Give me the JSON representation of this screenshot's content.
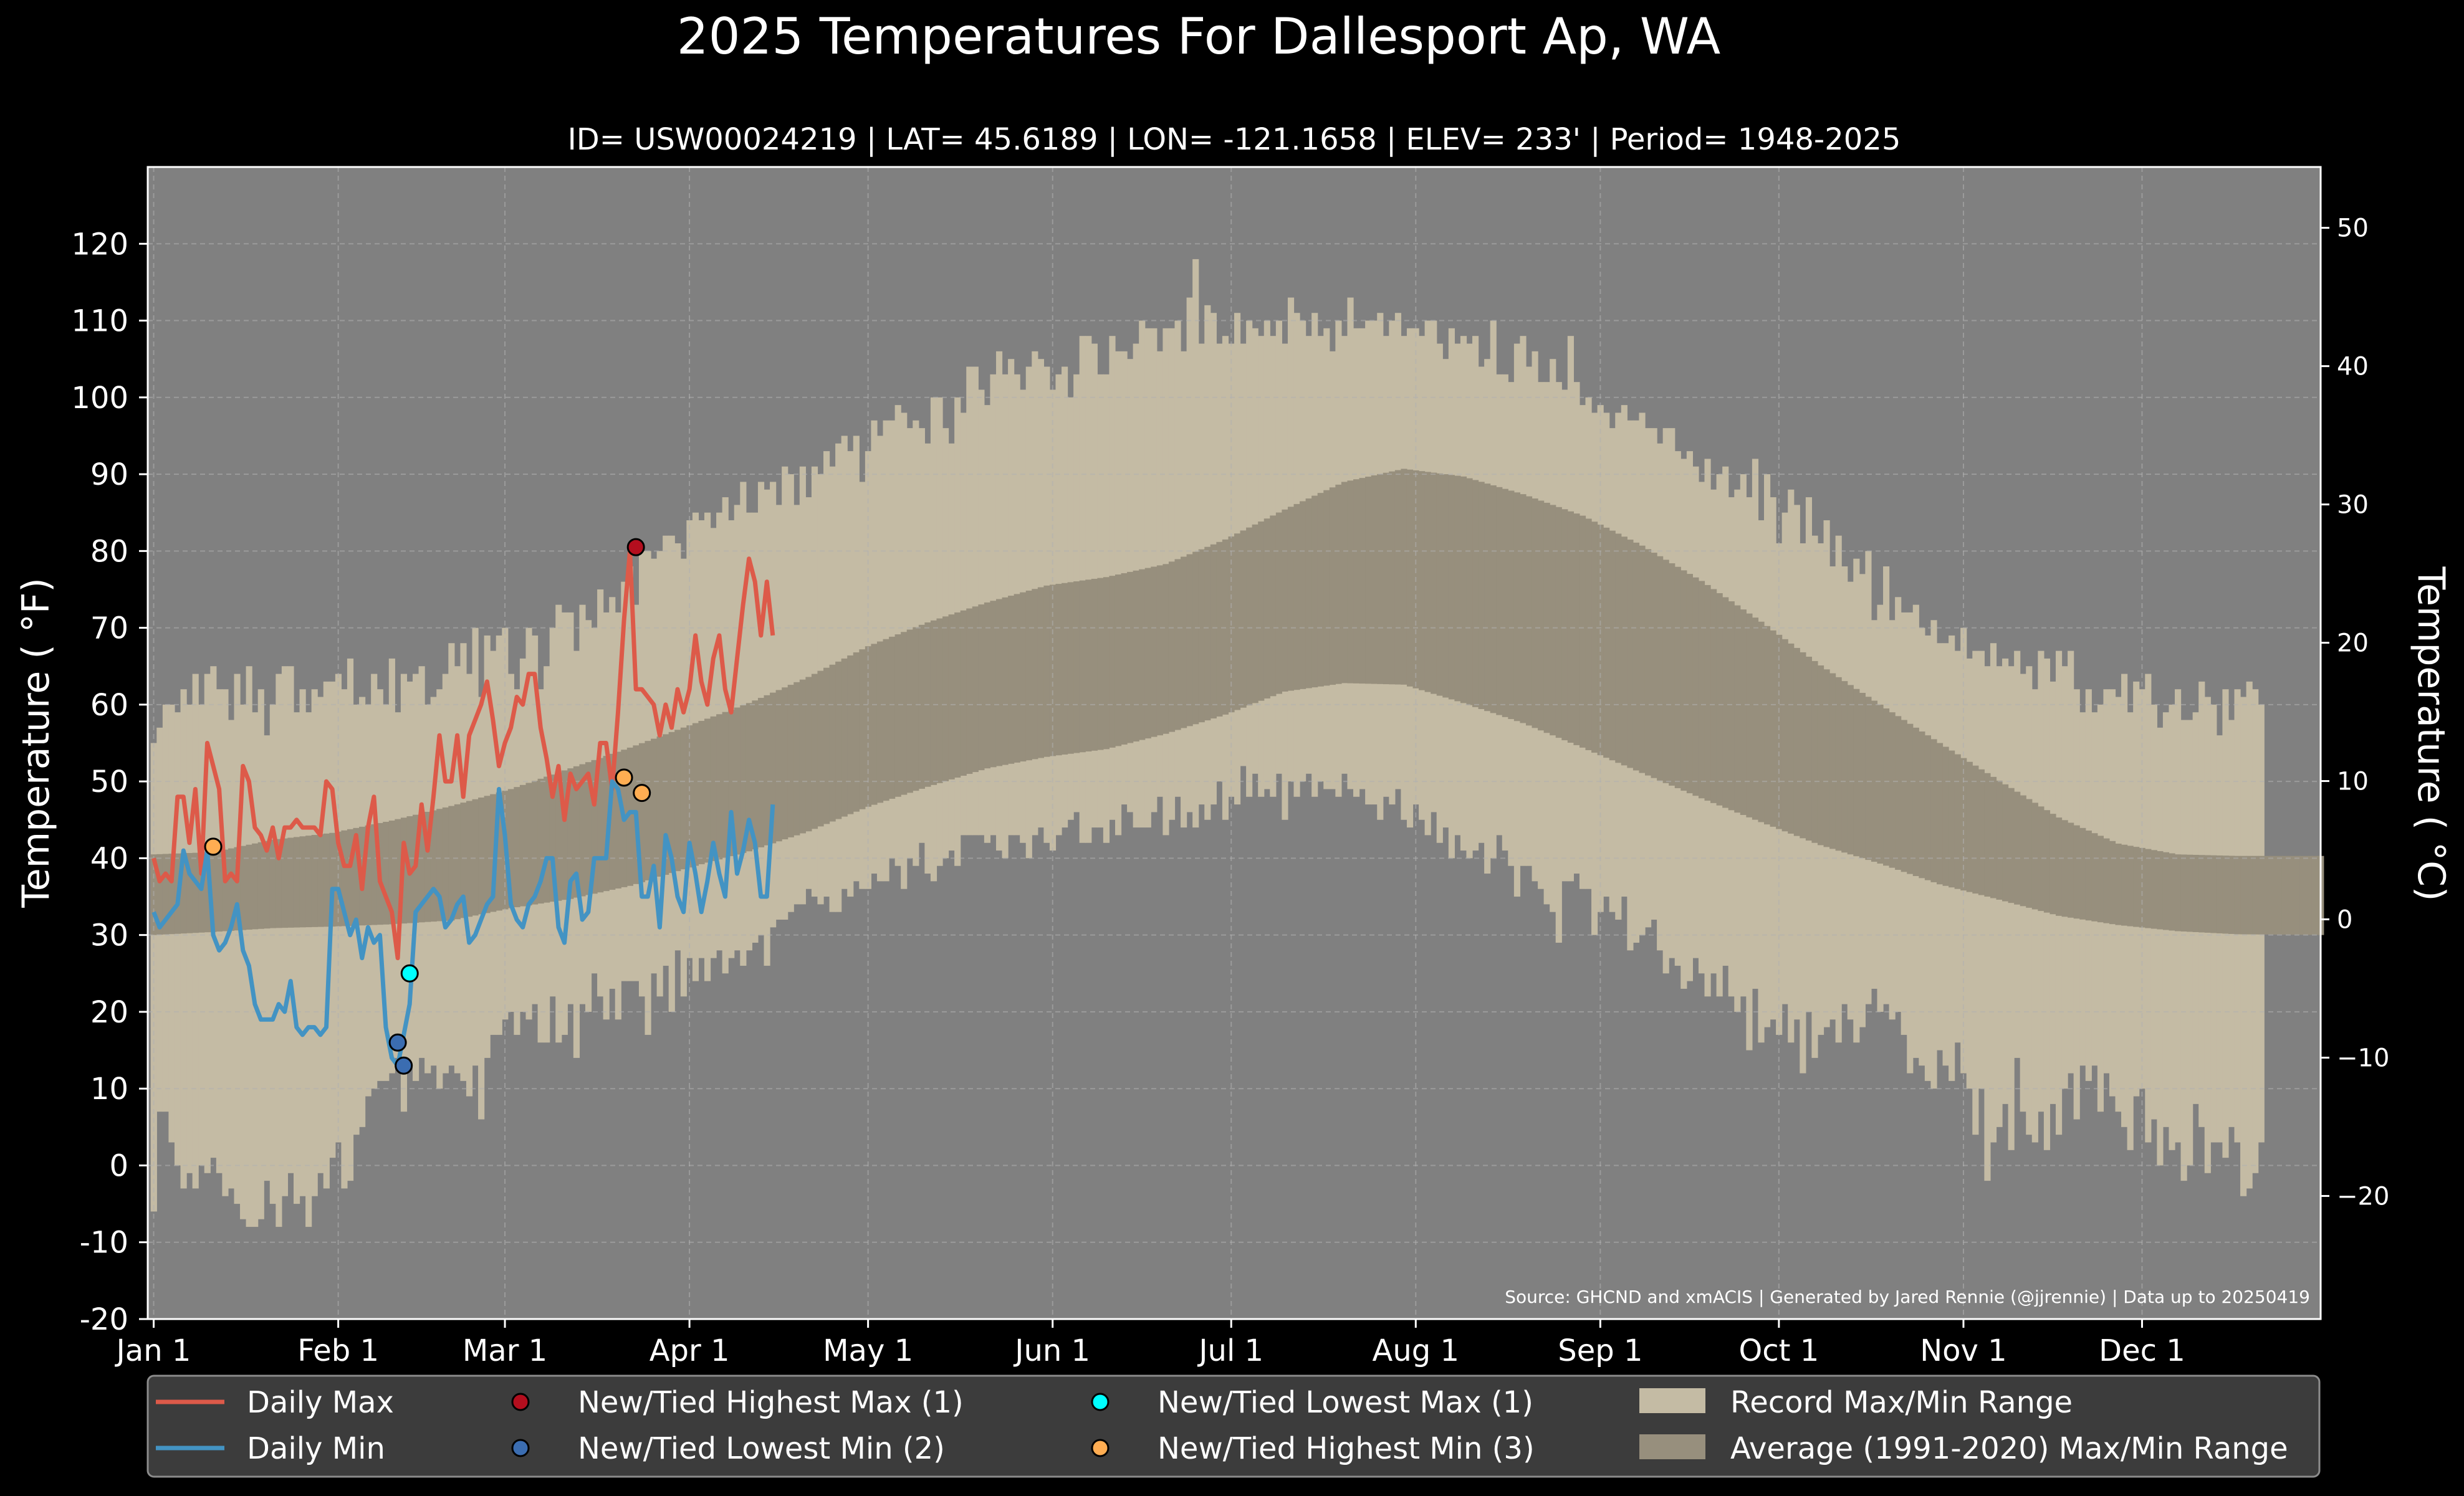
{
  "chart_data": {
    "type": "line",
    "title": "2025 Temperatures For Dallesport Ap, WA",
    "subtitle": "ID= USW00024219 | LAT= 45.6189 | LON= -121.1658 | ELEV= 233' | Period= 1948-2025",
    "ylabel": "Temperature ($^\\circ$F)",
    "ylabel_display": "Temperature ( °F)",
    "y2label": "Temperature ( °C)",
    "ylim": [
      -20,
      130
    ],
    "y2lim": [
      -28.9,
      54.4
    ],
    "xlim": [
      -1,
      364
    ],
    "yticks": [
      -20,
      -10,
      0,
      10,
      20,
      30,
      40,
      50,
      60,
      70,
      80,
      90,
      100,
      110,
      120
    ],
    "ytick_labels": [
      "-20",
      "-10",
      "0",
      "10",
      "20",
      "30",
      "40",
      "50",
      "60",
      "70",
      "80",
      "90",
      "100",
      "110",
      "120"
    ],
    "y2ticks": [
      -20,
      -10,
      0,
      10,
      20,
      30,
      40,
      50
    ],
    "y2tick_labels": [
      "−20",
      "−10",
      "0",
      "10",
      "20",
      "30",
      "40",
      "50"
    ],
    "xticks": [
      0,
      31,
      59,
      90,
      120,
      151,
      181,
      212,
      243,
      273,
      304,
      334
    ],
    "xtick_labels": [
      "Jan 1",
      "Feb 1",
      "Mar 1",
      "Apr 1",
      "May 1",
      "Jun 1",
      "Jul 1",
      "Aug 1",
      "Sep 1",
      "Oct 1",
      "Nov 1",
      "Dec 1"
    ],
    "grid": true,
    "source_note": "Source: GHCND and xmACIS | Generated by Jared Rennie (@jjrennie) | Data up to 20250419",
    "series": [
      {
        "name": "Daily Max",
        "color": "#dd5a49",
        "values": [
          40,
          37,
          38,
          37,
          48,
          48,
          42,
          49,
          38,
          55,
          52,
          49,
          37,
          38,
          37,
          52,
          50,
          44,
          43,
          41,
          44,
          40,
          44,
          44,
          45,
          44,
          44,
          44,
          43,
          50,
          49,
          42,
          39,
          39,
          43,
          36,
          44,
          48,
          37,
          35,
          33,
          27,
          42,
          38,
          39,
          47,
          41,
          48,
          56,
          50,
          50,
          56,
          48,
          56,
          58,
          60,
          63,
          58,
          52,
          55,
          57,
          61,
          60,
          64,
          64,
          57,
          53,
          48,
          52,
          45,
          51,
          49,
          50,
          51,
          47,
          55,
          55,
          49,
          59,
          71,
          80,
          62,
          62,
          61,
          60,
          56,
          60,
          57,
          62,
          59,
          62,
          69,
          63,
          60,
          66,
          69,
          62,
          59,
          66,
          73,
          79,
          76,
          69,
          76,
          69
        ]
      },
      {
        "name": "Daily Min",
        "color": "#4393c3",
        "values": [
          33,
          31,
          32,
          33,
          34,
          41,
          38,
          37,
          36,
          41,
          30,
          28,
          29,
          31,
          34,
          28,
          26,
          21,
          19,
          19,
          19,
          21,
          20,
          24,
          18,
          17,
          18,
          18,
          17,
          18,
          36,
          36,
          33,
          30,
          32,
          27,
          31,
          29,
          30,
          18,
          14,
          13,
          17,
          21,
          33,
          34,
          35,
          36,
          35,
          31,
          32,
          34,
          35,
          29,
          30,
          32,
          34,
          35,
          49,
          43,
          34,
          32,
          31,
          34,
          35,
          37,
          40,
          40,
          31,
          29,
          37,
          38,
          32,
          33,
          40,
          40,
          40,
          50,
          49,
          45,
          46,
          46,
          35,
          35,
          39,
          31,
          43,
          40,
          35,
          33,
          42,
          38,
          33,
          37,
          42,
          38,
          35,
          46,
          38,
          41,
          45,
          42,
          35,
          35,
          47
        ]
      },
      {
        "name": "Record Max",
        "color": "#c4bba4",
        "values": [
          55,
          57,
          60,
          60,
          59,
          62,
          60,
          64,
          60,
          64,
          65,
          62,
          62,
          58,
          64,
          60,
          65,
          59,
          62,
          56,
          60,
          64,
          65,
          65,
          59,
          62,
          59,
          62,
          61,
          63,
          63,
          64,
          62,
          66,
          60,
          61,
          60,
          64,
          62,
          60,
          66,
          59,
          64,
          63,
          64,
          65,
          60,
          61,
          62,
          64,
          68,
          65,
          68,
          64,
          70,
          61,
          69,
          67,
          69,
          70,
          64,
          62,
          66,
          70,
          69,
          62,
          65,
          70,
          73,
          72,
          72,
          67,
          73,
          71,
          70,
          75,
          72,
          74,
          72,
          76,
          78,
          73,
          80,
          80,
          79,
          80,
          82,
          82,
          81,
          79,
          84,
          85,
          84,
          85,
          83,
          85,
          87,
          84,
          86,
          89,
          85,
          85,
          89,
          88,
          89,
          86,
          91,
          90,
          86,
          91,
          87,
          91,
          90,
          93,
          91,
          94,
          95,
          93,
          95,
          89,
          93,
          97,
          95,
          97,
          97,
          99,
          98,
          96,
          97,
          96,
          94,
          100,
          100,
          96,
          94,
          100,
          98,
          104,
          104,
          101,
          99,
          103,
          106,
          103,
          105,
          103,
          101,
          104,
          106,
          105,
          104,
          101,
          103,
          104,
          100,
          103,
          108,
          108,
          107,
          103,
          103,
          108,
          106,
          106,
          105,
          107,
          110,
          109,
          109,
          106,
          109,
          109,
          110,
          106,
          113,
          118,
          107,
          112,
          111,
          107,
          108,
          107,
          111,
          107,
          110,
          109,
          108,
          110,
          108,
          110,
          107,
          113,
          111,
          110,
          108,
          111,
          108,
          109,
          106,
          110,
          108,
          113,
          109,
          109,
          110,
          110,
          111,
          108,
          110,
          111,
          108,
          109,
          109,
          108,
          110,
          110,
          107,
          105,
          109,
          107,
          108,
          107,
          108,
          104,
          105,
          110,
          103,
          103,
          102,
          107,
          108,
          104,
          106,
          102,
          102,
          105,
          102,
          101,
          108,
          102,
          99,
          100,
          98,
          99,
          98,
          96,
          98,
          99,
          97,
          97,
          98,
          96,
          96,
          94,
          96,
          96,
          93,
          92,
          93,
          91,
          89,
          92,
          88,
          90,
          91,
          87,
          88,
          90,
          87,
          92,
          84,
          90,
          87,
          81,
          85,
          88,
          86,
          81,
          87,
          82,
          81,
          84,
          78,
          82,
          78,
          76,
          79,
          77,
          80,
          71,
          73,
          78,
          71,
          74,
          72,
          72,
          73,
          70,
          69,
          71,
          68,
          68,
          69,
          67,
          70,
          66,
          67,
          67,
          65,
          68,
          65,
          66,
          65,
          67,
          64,
          65,
          62,
          67,
          66,
          63,
          67,
          65,
          67,
          62,
          59,
          62,
          59,
          60,
          62,
          62,
          61,
          64,
          59,
          63,
          62,
          64,
          60,
          57,
          59,
          60,
          62,
          58,
          58,
          59,
          63,
          61,
          60,
          56,
          62,
          58,
          62,
          61,
          63,
          62,
          60
        ]
      },
      {
        "name": "Record Min",
        "color": "#c4bba4",
        "values": [
          -6,
          7,
          7,
          3,
          0,
          -3,
          -1,
          -3,
          0,
          -1,
          1,
          -1,
          -4,
          -3,
          -5,
          -7,
          -8,
          -8,
          -7,
          -2,
          -5,
          -8,
          -4,
          -1,
          -5,
          -4,
          -8,
          -4,
          -1,
          -3,
          1,
          3,
          -3,
          -2,
          4,
          5,
          9,
          10,
          11,
          11,
          12,
          14,
          7,
          13,
          11,
          14,
          12,
          13,
          10,
          12,
          13,
          12,
          11,
          9,
          13,
          6,
          14,
          17,
          17,
          19,
          20,
          17,
          20,
          19,
          21,
          16,
          16,
          22,
          16,
          17,
          21,
          14,
          21,
          20,
          25,
          22,
          19,
          23,
          19,
          24,
          24,
          24,
          22,
          17,
          25,
          22,
          26,
          20,
          28,
          22,
          27,
          24,
          27,
          24,
          27,
          28,
          25,
          27,
          28,
          26,
          28,
          29,
          30,
          26,
          31,
          32,
          32,
          33,
          34,
          34,
          36,
          35,
          34,
          35,
          33,
          33,
          36,
          35,
          37,
          36,
          36,
          38,
          37,
          37,
          40,
          39,
          36,
          40,
          39,
          42,
          38,
          37,
          39,
          40,
          41,
          39,
          43,
          43,
          43,
          43,
          42,
          43,
          41,
          40,
          43,
          43,
          42,
          40,
          43,
          44,
          42,
          41,
          43,
          44,
          45,
          46,
          42,
          42,
          44,
          44,
          42,
          45,
          43,
          47,
          46,
          44,
          44,
          44,
          46,
          48,
          43,
          45,
          48,
          44,
          46,
          44,
          47,
          45,
          47,
          50,
          45,
          48,
          47,
          52,
          48,
          51,
          48,
          49,
          48,
          51,
          45,
          50,
          48,
          50,
          51,
          48,
          50,
          49,
          49,
          48,
          51,
          49,
          48,
          49,
          47,
          47,
          45,
          48,
          47,
          49,
          45,
          44,
          47,
          45,
          43,
          46,
          42,
          44,
          40,
          43,
          41,
          40,
          41,
          42,
          38,
          40,
          43,
          41,
          39,
          35,
          39,
          39,
          37,
          36,
          34,
          33,
          29,
          37,
          37,
          38,
          36,
          36,
          30,
          33,
          35,
          33,
          32,
          35,
          28,
          29,
          30,
          31,
          32,
          28,
          25,
          27,
          26,
          23,
          24,
          27,
          25,
          22,
          25,
          22,
          26,
          22,
          20,
          22,
          15,
          23,
          16,
          18,
          19,
          17,
          21,
          16,
          19,
          12,
          20,
          14,
          17,
          18,
          19,
          16,
          21,
          19,
          16,
          18,
          21,
          23,
          20,
          21,
          19,
          20,
          17,
          12,
          14,
          13,
          11,
          10,
          15,
          13,
          11,
          16,
          12,
          10,
          4,
          10,
          -2,
          3,
          5,
          8,
          2,
          14,
          7,
          4,
          3,
          7,
          2,
          8,
          4,
          10,
          12,
          6,
          13,
          11,
          13,
          7,
          12,
          9,
          7,
          5,
          2,
          9,
          10,
          3,
          6,
          0,
          5,
          2,
          3,
          -2,
          0,
          8,
          5,
          -1,
          3,
          3,
          1,
          5,
          3,
          -4,
          -3,
          -1,
          3,
          2,
          -5,
          -4,
          -2,
          -1,
          -3,
          -2,
          -1,
          0,
          -2,
          -4,
          -5,
          -4,
          -5,
          -2,
          -3
        ]
      },
      {
        "name": "Normal Max",
        "color": "#978f7d",
        "values": [
          40.5,
          40.8,
          42.4,
          43.3,
          44.9,
          46.8,
          49.0,
          51.7,
          54.4,
          57.3,
          60.2,
          63.6,
          67.6,
          70.7,
          73.3,
          75.5,
          76.6,
          78.3,
          81.5,
          85.4,
          89.0,
          90.7,
          89.7,
          87.4,
          84.6,
          80.7,
          76.1,
          70.8,
          65.1,
          60.0,
          55.0,
          50.1,
          45.3,
          41.9,
          40.5,
          40.3,
          40.3
        ]
      },
      {
        "name": "Normal Min",
        "color": "#978f7d",
        "values": [
          30.0,
          30.4,
          30.9,
          31.1,
          31.4,
          31.9,
          33.5,
          34.7,
          36.4,
          38.8,
          40.9,
          43.5,
          46.7,
          49.3,
          51.7,
          53.2,
          54.2,
          56.2,
          58.7,
          61.7,
          62.8,
          62.6,
          60.2,
          57.6,
          54.4,
          51.1,
          47.8,
          44.7,
          41.7,
          39.3,
          36.6,
          34.6,
          32.5,
          31.3,
          30.5,
          30.1,
          30.0
        ]
      }
    ],
    "normal_anchor_days": [
      0,
      10,
      20,
      30,
      40,
      50,
      60,
      70,
      80,
      90,
      100,
      110,
      120,
      130,
      140,
      150,
      160,
      170,
      180,
      190,
      200,
      210,
      220,
      230,
      240,
      250,
      260,
      270,
      280,
      290,
      300,
      310,
      320,
      330,
      340,
      350,
      364
    ],
    "record_points": [
      {
        "name": "New/Tied Highest Max (1)",
        "color": "#b40e1e",
        "points": [
          {
            "day": 81,
            "value": 80.5
          }
        ]
      },
      {
        "name": "New/Tied Lowest Min (2)",
        "color": "#3b6db1",
        "points": [
          {
            "day": 41,
            "value": 16
          },
          {
            "day": 42,
            "value": 13
          }
        ]
      },
      {
        "name": "New/Tied Lowest Max (1)",
        "color": "#00ffff",
        "points": [
          {
            "day": 43,
            "value": 25
          }
        ]
      },
      {
        "name": "New/Tied Highest Min (3)",
        "color": "#ffad52",
        "points": [
          {
            "day": 10,
            "value": 41.5
          },
          {
            "day": 79,
            "value": 50.5
          },
          {
            "day": 82,
            "value": 48.5
          }
        ]
      }
    ],
    "legend": [
      {
        "label": "Daily Max",
        "kind": "line",
        "color": "#dd5a49"
      },
      {
        "label": "Daily Min",
        "kind": "line",
        "color": "#4393c3"
      },
      {
        "label": "New/Tied Highest Max (1)",
        "kind": "dot",
        "color": "#b40e1e"
      },
      {
        "label": "New/Tied Lowest Min (2)",
        "kind": "dot",
        "color": "#3b6db1"
      },
      {
        "label": "New/Tied Lowest Max (1)",
        "kind": "dot",
        "color": "#00ffff"
      },
      {
        "label": "New/Tied Highest Min (3)",
        "kind": "dot",
        "color": "#ffad52"
      },
      {
        "label": "Record Max/Min Range",
        "kind": "patch",
        "color": "#c4bba4"
      },
      {
        "label": "Average (1991-2020) Max/Min Range",
        "kind": "patch",
        "color": "#978f7d"
      }
    ],
    "legend_placement": "below",
    "background_color": "#808080"
  }
}
